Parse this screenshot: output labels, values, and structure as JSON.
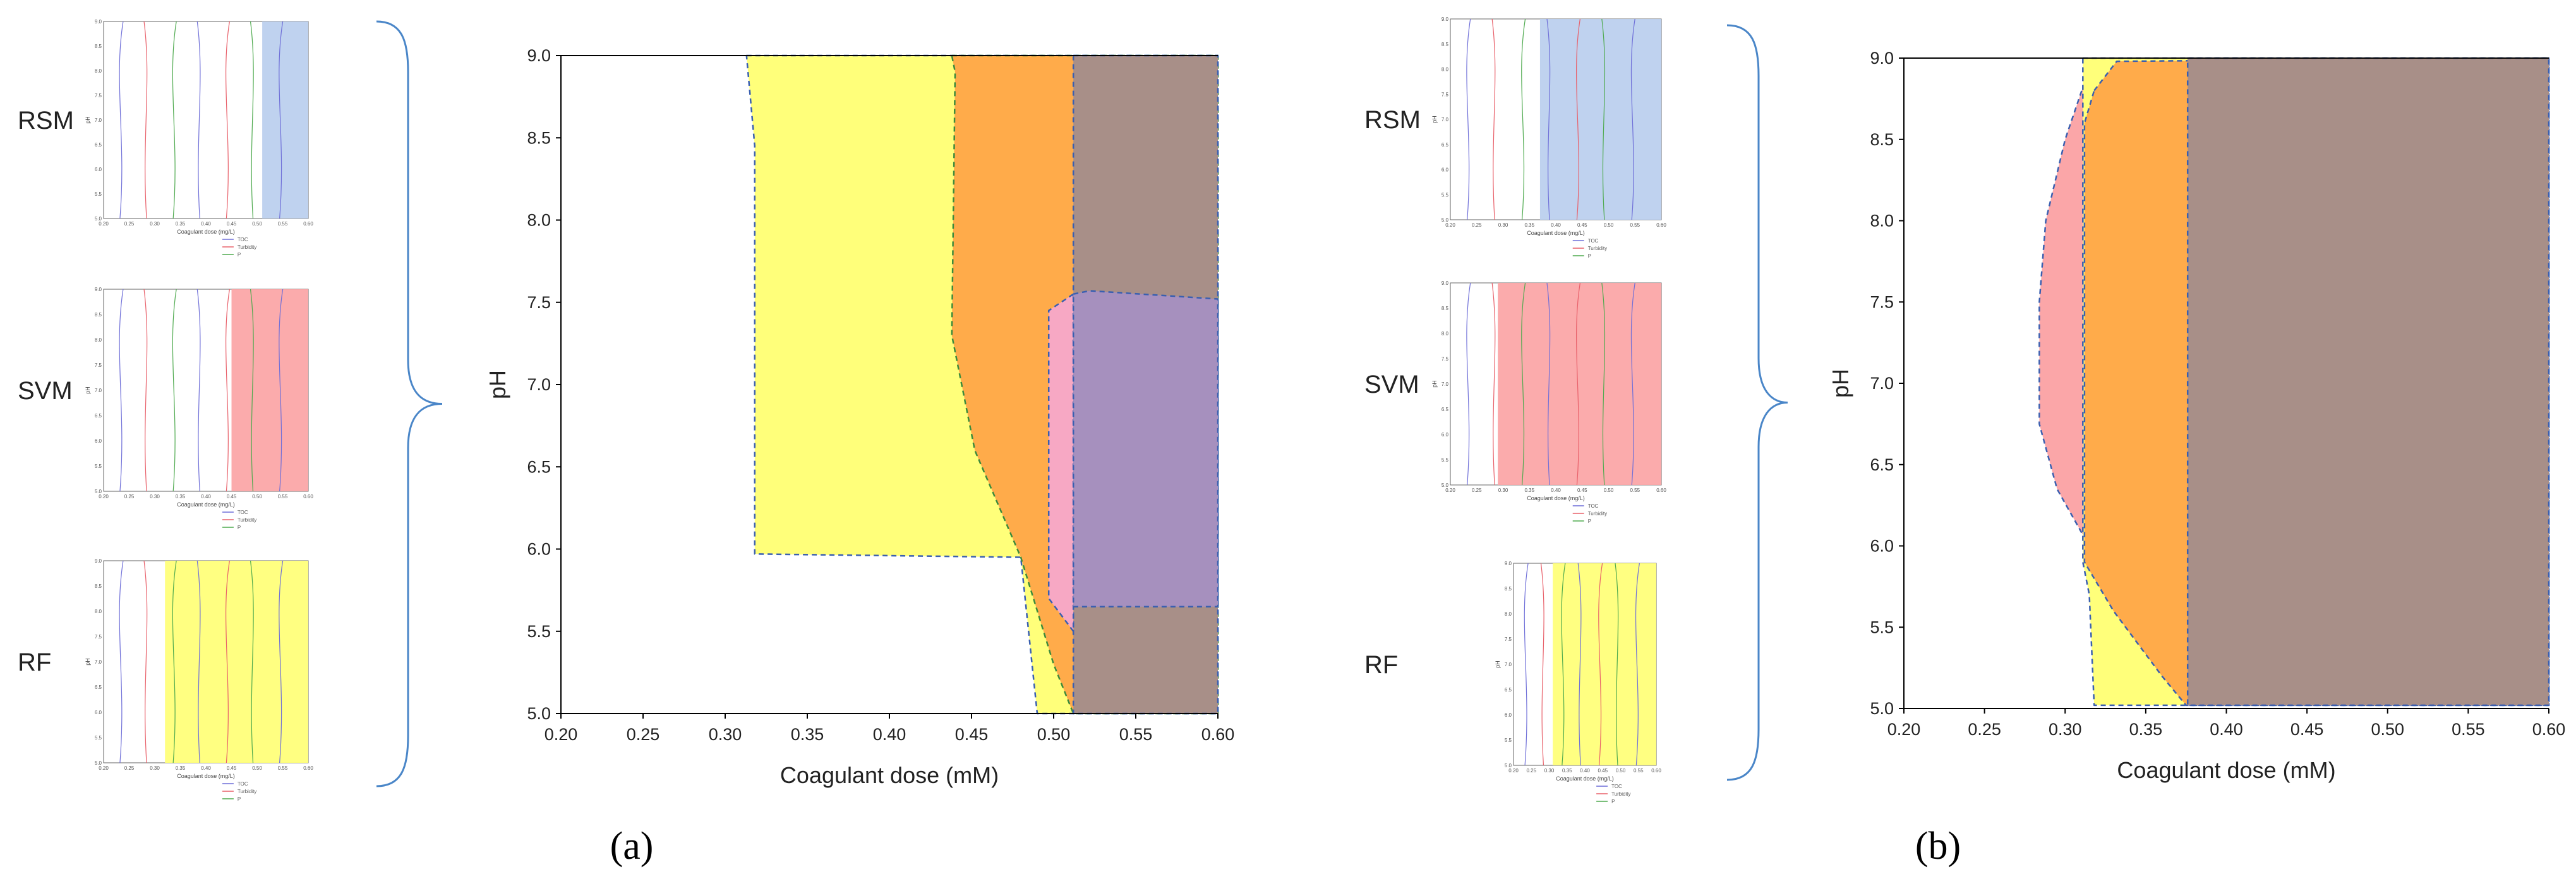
{
  "colors": {
    "bracket": "#4a86c8",
    "yellow": "#ffff7a",
    "orange": "#ffab4a",
    "brown": "#a88f88",
    "purple": "#a690be",
    "pink": "#f7a8c4",
    "red": "#fba6a8",
    "blue": "#bcd0ee",
    "toc_line": "#6f6fd8",
    "turbidity_line": "#e8606a",
    "p_line": "#4faa4f",
    "border_blue": "#3a5fb0",
    "border_green": "#3c8a3c"
  },
  "panels": [
    {
      "panel_label": "(a)",
      "mini_plots": [
        {
          "model": "RSM",
          "shaded_region": {
            "color": "blue",
            "x_from": 0.51,
            "x_to": 0.6
          }
        },
        {
          "model": "SVM",
          "shaded_region": {
            "color": "red",
            "x_from": 0.45,
            "x_to": 0.6
          }
        },
        {
          "model": "RF",
          "shaded_region": {
            "color": "yellow",
            "x_from": 0.32,
            "x_to": 0.6
          }
        }
      ]
    },
    {
      "panel_label": "(b)",
      "mini_plots": [
        {
          "model": "RSM",
          "shaded_region": {
            "color": "blue",
            "x_from": 0.37,
            "x_to": 0.6
          }
        },
        {
          "model": "SVM",
          "shaded_region": {
            "color": "red",
            "x_from": 0.29,
            "x_to": 0.6
          }
        },
        {
          "model": "RF",
          "shaded_region": {
            "color": "yellow",
            "x_from": 0.31,
            "x_to": 0.6
          }
        }
      ]
    }
  ],
  "mini_plot_common": {
    "x_title": "Coagulant dose (mg/L)",
    "y_title": "pH",
    "x_ticks": [
      "0.20",
      "0.25",
      "0.30",
      "0.35",
      "0.40",
      "0.45",
      "0.50",
      "0.55",
      "0.60"
    ],
    "y_ticks": [
      "5.0",
      "5.5",
      "6.0",
      "6.5",
      "7.0",
      "7.5",
      "8.0",
      "8.5",
      "9.0"
    ],
    "legend": [
      "TOC",
      "Turbidity",
      "P"
    ]
  },
  "chart_data": [
    {
      "type": "area",
      "panel": "(a)",
      "xlabel": "Coagulant dose (mM)",
      "ylabel": "pH",
      "xlim": [
        0.2,
        0.6
      ],
      "ylim": [
        5.0,
        9.0
      ],
      "x_ticks": [
        "0.20",
        "0.25",
        "0.30",
        "0.35",
        "0.40",
        "0.45",
        "0.50",
        "0.55",
        "0.60"
      ],
      "y_ticks": [
        "5.0",
        "5.5",
        "6.0",
        "6.5",
        "7.0",
        "7.5",
        "8.0",
        "8.5",
        "9.0"
      ],
      "regions": [
        {
          "color": "yellow",
          "border": "blue",
          "points": [
            [
              0.313,
              9.0
            ],
            [
              0.6,
              9.0
            ],
            [
              0.6,
              5.0
            ],
            [
              0.49,
              5.0
            ],
            [
              0.48,
              5.95
            ],
            [
              0.318,
              5.97
            ],
            [
              0.318,
              8.45
            ]
          ]
        },
        {
          "color": "orange",
          "border": "green",
          "points": [
            [
              0.438,
              9.0
            ],
            [
              0.6,
              9.0
            ],
            [
              0.6,
              5.0
            ],
            [
              0.512,
              5.0
            ],
            [
              0.5,
              5.3
            ],
            [
              0.48,
              5.95
            ],
            [
              0.452,
              6.6
            ],
            [
              0.438,
              7.3
            ],
            [
              0.44,
              8.9
            ]
          ]
        },
        {
          "color": "brown",
          "border": "blue",
          "points": [
            [
              0.512,
              9.0
            ],
            [
              0.6,
              9.0
            ],
            [
              0.6,
              5.0
            ],
            [
              0.512,
              5.0
            ]
          ]
        },
        {
          "color": "pink",
          "border": "blue",
          "points": [
            [
              0.512,
              7.55
            ],
            [
              0.497,
              7.45
            ],
            [
              0.497,
              5.7
            ],
            [
              0.512,
              5.5
            ]
          ]
        },
        {
          "color": "purple",
          "border": "blue",
          "points": [
            [
              0.512,
              7.55
            ],
            [
              0.522,
              7.57
            ],
            [
              0.6,
              7.52
            ],
            [
              0.6,
              5.65
            ],
            [
              0.512,
              5.65
            ]
          ]
        }
      ]
    },
    {
      "type": "area",
      "panel": "(b)",
      "xlabel": "Coagulant dose (mM)",
      "ylabel": "pH",
      "xlim": [
        0.2,
        0.6
      ],
      "ylim": [
        5.0,
        9.0
      ],
      "x_ticks": [
        "0.20",
        "0.25",
        "0.30",
        "0.35",
        "0.40",
        "0.45",
        "0.50",
        "0.55",
        "0.60"
      ],
      "y_ticks": [
        "5.0",
        "5.5",
        "6.0",
        "6.5",
        "7.0",
        "7.5",
        "8.0",
        "8.5",
        "9.0"
      ],
      "regions": [
        {
          "color": "red",
          "border": "blue",
          "points": [
            [
              0.312,
              8.85
            ],
            [
              0.3,
              8.5
            ],
            [
              0.288,
              8.0
            ],
            [
              0.284,
              7.5
            ],
            [
              0.284,
              6.75
            ],
            [
              0.295,
              6.35
            ],
            [
              0.312,
              6.05
            ]
          ]
        },
        {
          "color": "yellow",
          "border": "blue",
          "points": [
            [
              0.311,
              9.0
            ],
            [
              0.6,
              9.0
            ],
            [
              0.6,
              5.02
            ],
            [
              0.318,
              5.02
            ],
            [
              0.315,
              5.7
            ],
            [
              0.311,
              5.9
            ]
          ]
        },
        {
          "color": "orange",
          "border": "blue",
          "points": [
            [
              0.318,
              8.8
            ],
            [
              0.332,
              8.98
            ],
            [
              0.6,
              9.0
            ],
            [
              0.6,
              5.02
            ],
            [
              0.375,
              5.02
            ],
            [
              0.36,
              5.2
            ],
            [
              0.33,
              5.6
            ],
            [
              0.312,
              5.9
            ],
            [
              0.312,
              8.6
            ]
          ]
        },
        {
          "color": "brown",
          "border": "blue",
          "points": [
            [
              0.376,
              9.0
            ],
            [
              0.6,
              9.0
            ],
            [
              0.6,
              5.02
            ],
            [
              0.376,
              5.02
            ]
          ]
        }
      ]
    }
  ]
}
